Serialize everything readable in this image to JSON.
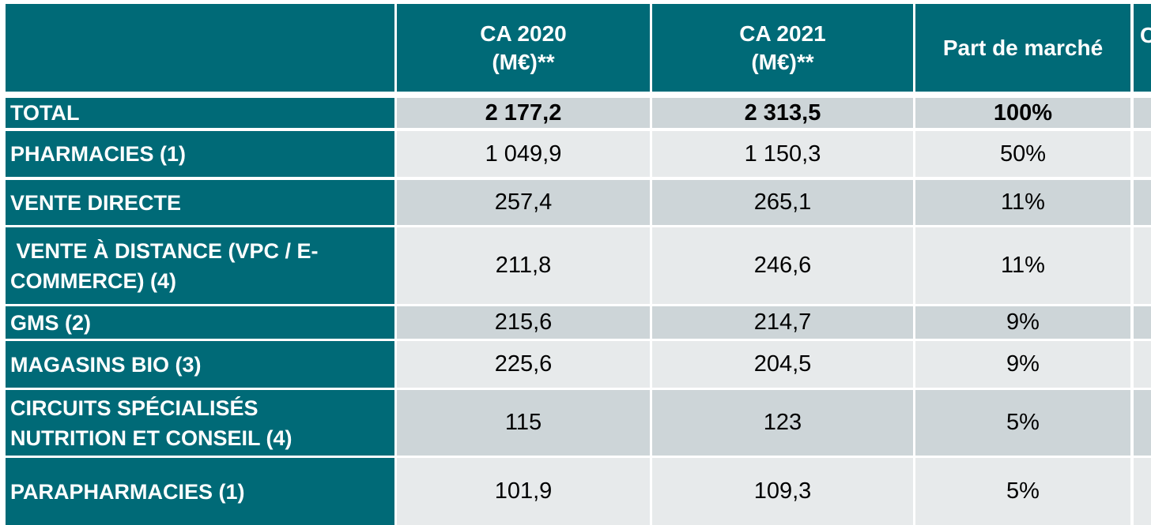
{
  "table": {
    "headers": [
      "",
      "CA 2020\n(M€)**",
      "CA 2021\n(M€)**",
      "Part de marché",
      "C"
    ],
    "rows": [
      {
        "label": "TOTAL",
        "ca2020": "2 177,2",
        "ca2021": "2 313,5",
        "part": "100%"
      },
      {
        "label": "PHARMACIES (1)",
        "ca2020": "1 049,9",
        "ca2021": "1 150,3",
        "part": "50%"
      },
      {
        "label": "VENTE DIRECTE",
        "ca2020": "257,4",
        "ca2021": "265,1",
        "part": "11%"
      },
      {
        "label": " VENTE À DISTANCE (VPC / E-COMMERCE) (4)",
        "ca2020": "211,8",
        "ca2021": "246,6",
        "part": "11%"
      },
      {
        "label": "GMS (2)",
        "ca2020": "215,6",
        "ca2021": "214,7",
        "part": "9%"
      },
      {
        "label": "MAGASINS BIO (3)",
        "ca2020": "225,6",
        "ca2021": "204,5",
        "part": "9%"
      },
      {
        "label": "CIRCUITS SPÉCIALISÉS NUTRITION ET CONSEIL (4)",
        "ca2020": "115",
        "ca2021": "123",
        "part": "5%"
      },
      {
        "label": "PARAPHARMACIES (1)",
        "ca2020": "101,9",
        "ca2021": "109,3",
        "part": "5%"
      }
    ]
  },
  "colors": {
    "header": "#006a77",
    "row_light": "#e7eaeb",
    "row_dark": "#cdd5d8"
  }
}
